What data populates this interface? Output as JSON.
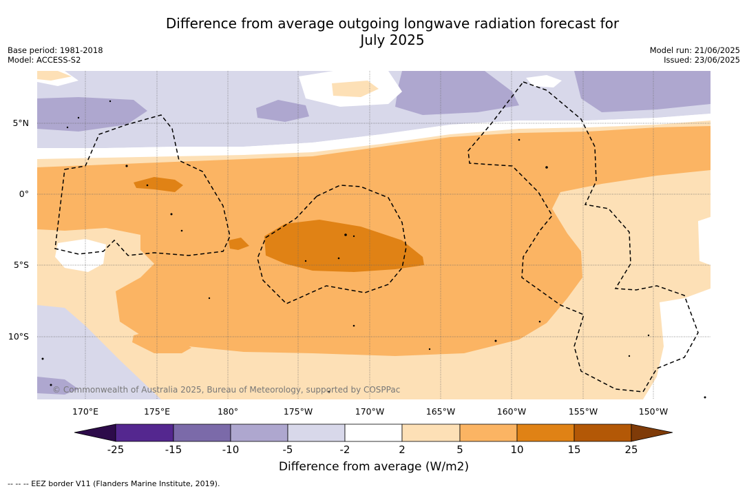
{
  "title_line1": "Difference from average outgoing longwave radiation forecast for",
  "title_line2": "July 2025",
  "base_period": "Base period: 1981-2018",
  "model": "Model: ACCESS-S2",
  "model_run": "Model run: 21/06/2025",
  "issued": "Issued: 23/06/2025",
  "lat_labels": [
    "5°N",
    "0°",
    "5°S",
    "10°S"
  ],
  "lon_labels": [
    "170°E",
    "175°E",
    "180°",
    "175°W",
    "170°W",
    "165°W",
    "160°W",
    "155°W",
    "150°W"
  ],
  "copyright": "© Commonwealth of Australia 2025, Bureau of Meteorology, supported by COSPPac",
  "colorbar": {
    "ticks": [
      "-25",
      "-15",
      "-10",
      "-5",
      "-2",
      "2",
      "5",
      "10",
      "15",
      "25"
    ],
    "title": "Difference from average (W/m2)",
    "colors": {
      "under": "#2d0b4a",
      "c1": "#54278f",
      "c2": "#7b6aa9",
      "c3": "#aea7cf",
      "c4": "#d8d8ea",
      "c5": "#ffffff",
      "c6": "#fde0b6",
      "c7": "#fbb463",
      "c8": "#e08215",
      "c9": "#b35806",
      "over": "#7f3b08"
    }
  },
  "footnote": "--  --  -- EEZ border V11 (Flanders Marine Institute, 2019)."
}
